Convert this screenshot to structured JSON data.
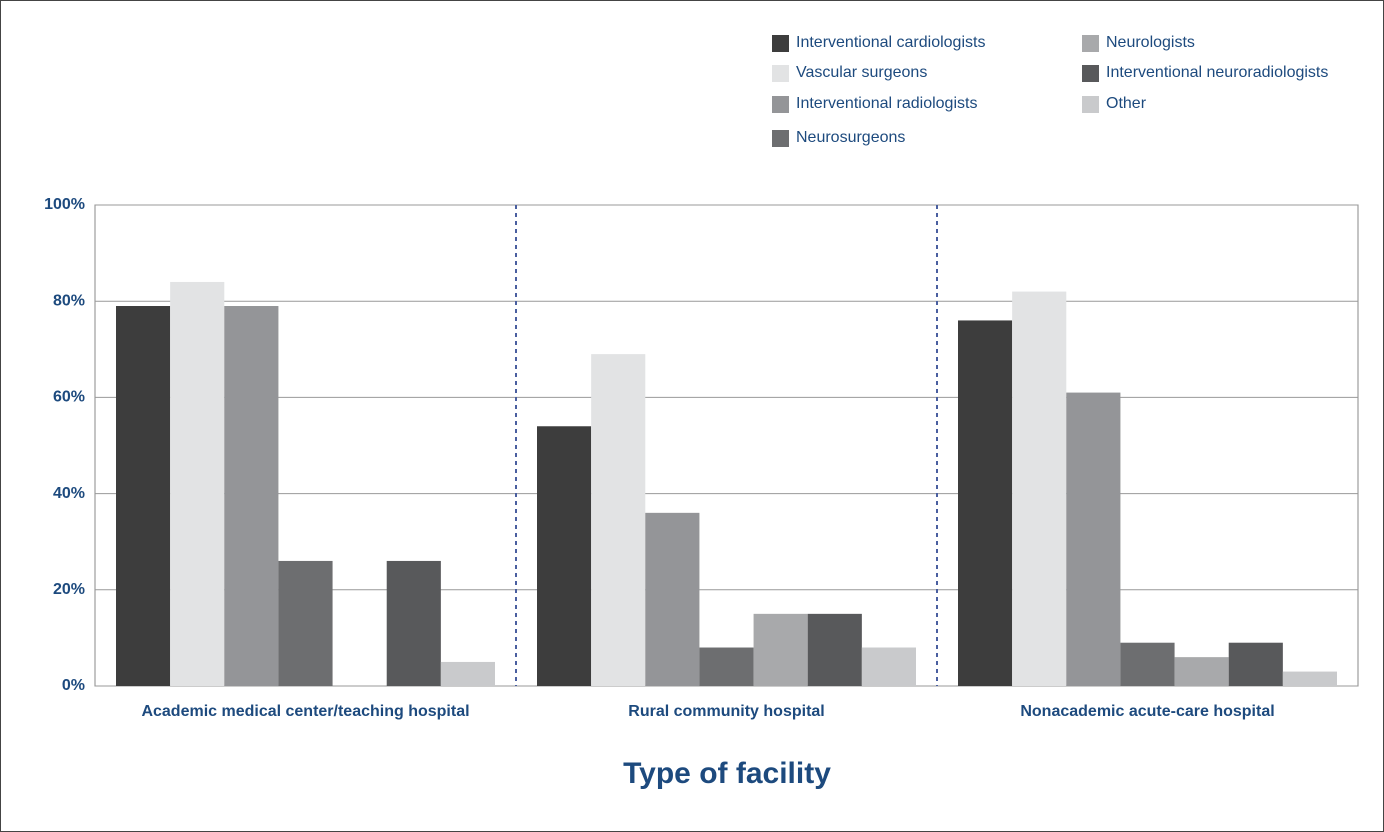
{
  "chart_data": {
    "type": "bar",
    "x_label": "Type of facility",
    "categories": [
      "Academic medical center/teaching hospital",
      "Rural community hospital",
      "Nonacademic acute-care hospital"
    ],
    "series": [
      {
        "name": "Interventional cardiologists",
        "color": "#3d3d3d",
        "values": [
          79,
          54,
          76
        ]
      },
      {
        "name": "Vascular surgeons",
        "color": "#e2e3e4",
        "values": [
          84,
          69,
          82
        ]
      },
      {
        "name": "Interventional radiologists",
        "color": "#949598",
        "values": [
          79,
          36,
          61
        ]
      },
      {
        "name": "Neurosurgeons",
        "color": "#6d6e70",
        "values": [
          26,
          8,
          9
        ]
      },
      {
        "name": "Neurologists",
        "color": "#a8a9ab",
        "values": [
          0,
          15,
          6
        ]
      },
      {
        "name": "Interventional neuroradiologists",
        "color": "#58595b",
        "values": [
          26,
          15,
          9
        ]
      },
      {
        "name": "Other",
        "color": "#c9cacc",
        "values": [
          5,
          8,
          3
        ]
      }
    ],
    "ylim": [
      0,
      100
    ],
    "yticks": [
      {
        "value": 0,
        "label": "0%"
      },
      {
        "value": 20,
        "label": "20%"
      },
      {
        "value": 40,
        "label": "40%"
      },
      {
        "value": 60,
        "label": "60%"
      },
      {
        "value": 80,
        "label": "80%"
      },
      {
        "value": 100,
        "label": "100%"
      }
    ],
    "grid": true,
    "legend": "top-right"
  }
}
